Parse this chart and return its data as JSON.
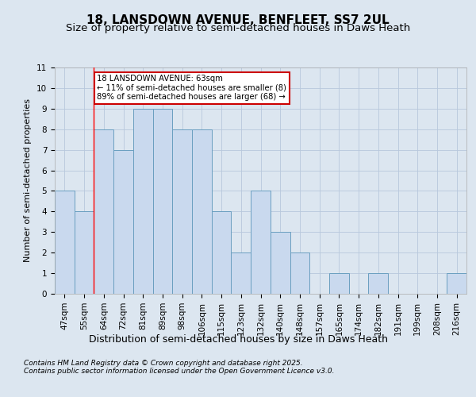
{
  "title1": "18, LANSDOWN AVENUE, BENFLEET, SS7 2UL",
  "title2": "Size of property relative to semi-detached houses in Daws Heath",
  "xlabel": "Distribution of semi-detached houses by size in Daws Heath",
  "ylabel": "Number of semi-detached properties",
  "categories": [
    "47sqm",
    "55sqm",
    "64sqm",
    "72sqm",
    "81sqm",
    "89sqm",
    "98sqm",
    "106sqm",
    "115sqm",
    "123sqm",
    "132sqm",
    "140sqm",
    "148sqm",
    "157sqm",
    "165sqm",
    "174sqm",
    "182sqm",
    "191sqm",
    "199sqm",
    "208sqm",
    "216sqm"
  ],
  "bar_values": [
    5,
    4,
    8,
    7,
    9,
    9,
    8,
    8,
    4,
    2,
    5,
    3,
    2,
    0,
    1,
    0,
    1,
    0,
    0,
    0,
    1
  ],
  "bar_color": "#c9d9ee",
  "bar_edge_color": "#6a9fc0",
  "grid_color": "#b8c8dc",
  "background_color": "#dce6f0",
  "red_line_index": 2,
  "annotation_text": "18 LANSDOWN AVENUE: 63sqm\n← 11% of semi-detached houses are smaller (8)\n89% of semi-detached houses are larger (68) →",
  "annotation_box_color": "#ffffff",
  "annotation_box_edge_color": "#cc0000",
  "ylim": [
    0,
    11
  ],
  "yticks": [
    0,
    1,
    2,
    3,
    4,
    5,
    6,
    7,
    8,
    9,
    10,
    11
  ],
  "footnote1": "Contains HM Land Registry data © Crown copyright and database right 2025.",
  "footnote2": "Contains public sector information licensed under the Open Government Licence v3.0.",
  "title1_fontsize": 11,
  "title2_fontsize": 9.5,
  "xlabel_fontsize": 9,
  "ylabel_fontsize": 8,
  "tick_fontsize": 7.5,
  "footnote_fontsize": 6.5
}
